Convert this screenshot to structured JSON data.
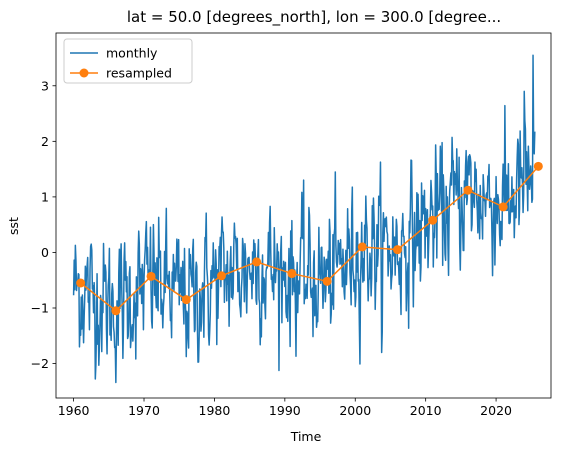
{
  "chart_data": {
    "type": "line",
    "title": "lat = 50.0 [degrees_north], lon = 300.0 [degree...",
    "xlabel": "Time",
    "ylabel": "sst",
    "xlim": [
      1957.5,
      2027.8
    ],
    "ylim": [
      -2.62,
      3.95
    ],
    "xticks": [
      "1960",
      "1970",
      "1980",
      "1990",
      "2000",
      "2010",
      "2020"
    ],
    "yticks": [
      "−2",
      "−1",
      "0",
      "1",
      "2",
      "3"
    ],
    "grid": false,
    "legend": {
      "position": "upper-left",
      "entries": [
        "monthly",
        "resampled"
      ]
    },
    "series": [
      {
        "name": "monthly",
        "color": "#1f77b4",
        "marker": "none",
        "note": "noisy monthly anomaly series, seed-generated around trend",
        "x_start": 1960.0,
        "x_end": 2025.5,
        "trend_x": [
          1960,
          1966,
          1971,
          1976,
          1981,
          1986,
          1991,
          1996,
          2001,
          2006,
          2011,
          2016,
          2021,
          2025.5
        ],
        "trend_y": [
          -0.6,
          -1.0,
          -0.5,
          -0.85,
          -0.45,
          -0.2,
          -0.4,
          -0.5,
          0.1,
          0.05,
          0.6,
          1.1,
          0.85,
          1.4
        ],
        "y_min": -2.4,
        "y_max": 3.55
      },
      {
        "name": "resampled",
        "color": "#ff7f0e",
        "marker": "circle",
        "x": [
          1961,
          1966,
          1971,
          1976,
          1981,
          1986,
          1991,
          1996,
          2001,
          2006,
          2011,
          2016,
          2021,
          2026
        ],
        "y": [
          -0.55,
          -1.05,
          -0.43,
          -0.85,
          -0.42,
          -0.17,
          -0.38,
          -0.52,
          0.1,
          0.05,
          0.58,
          1.12,
          0.82,
          1.55
        ]
      }
    ]
  }
}
